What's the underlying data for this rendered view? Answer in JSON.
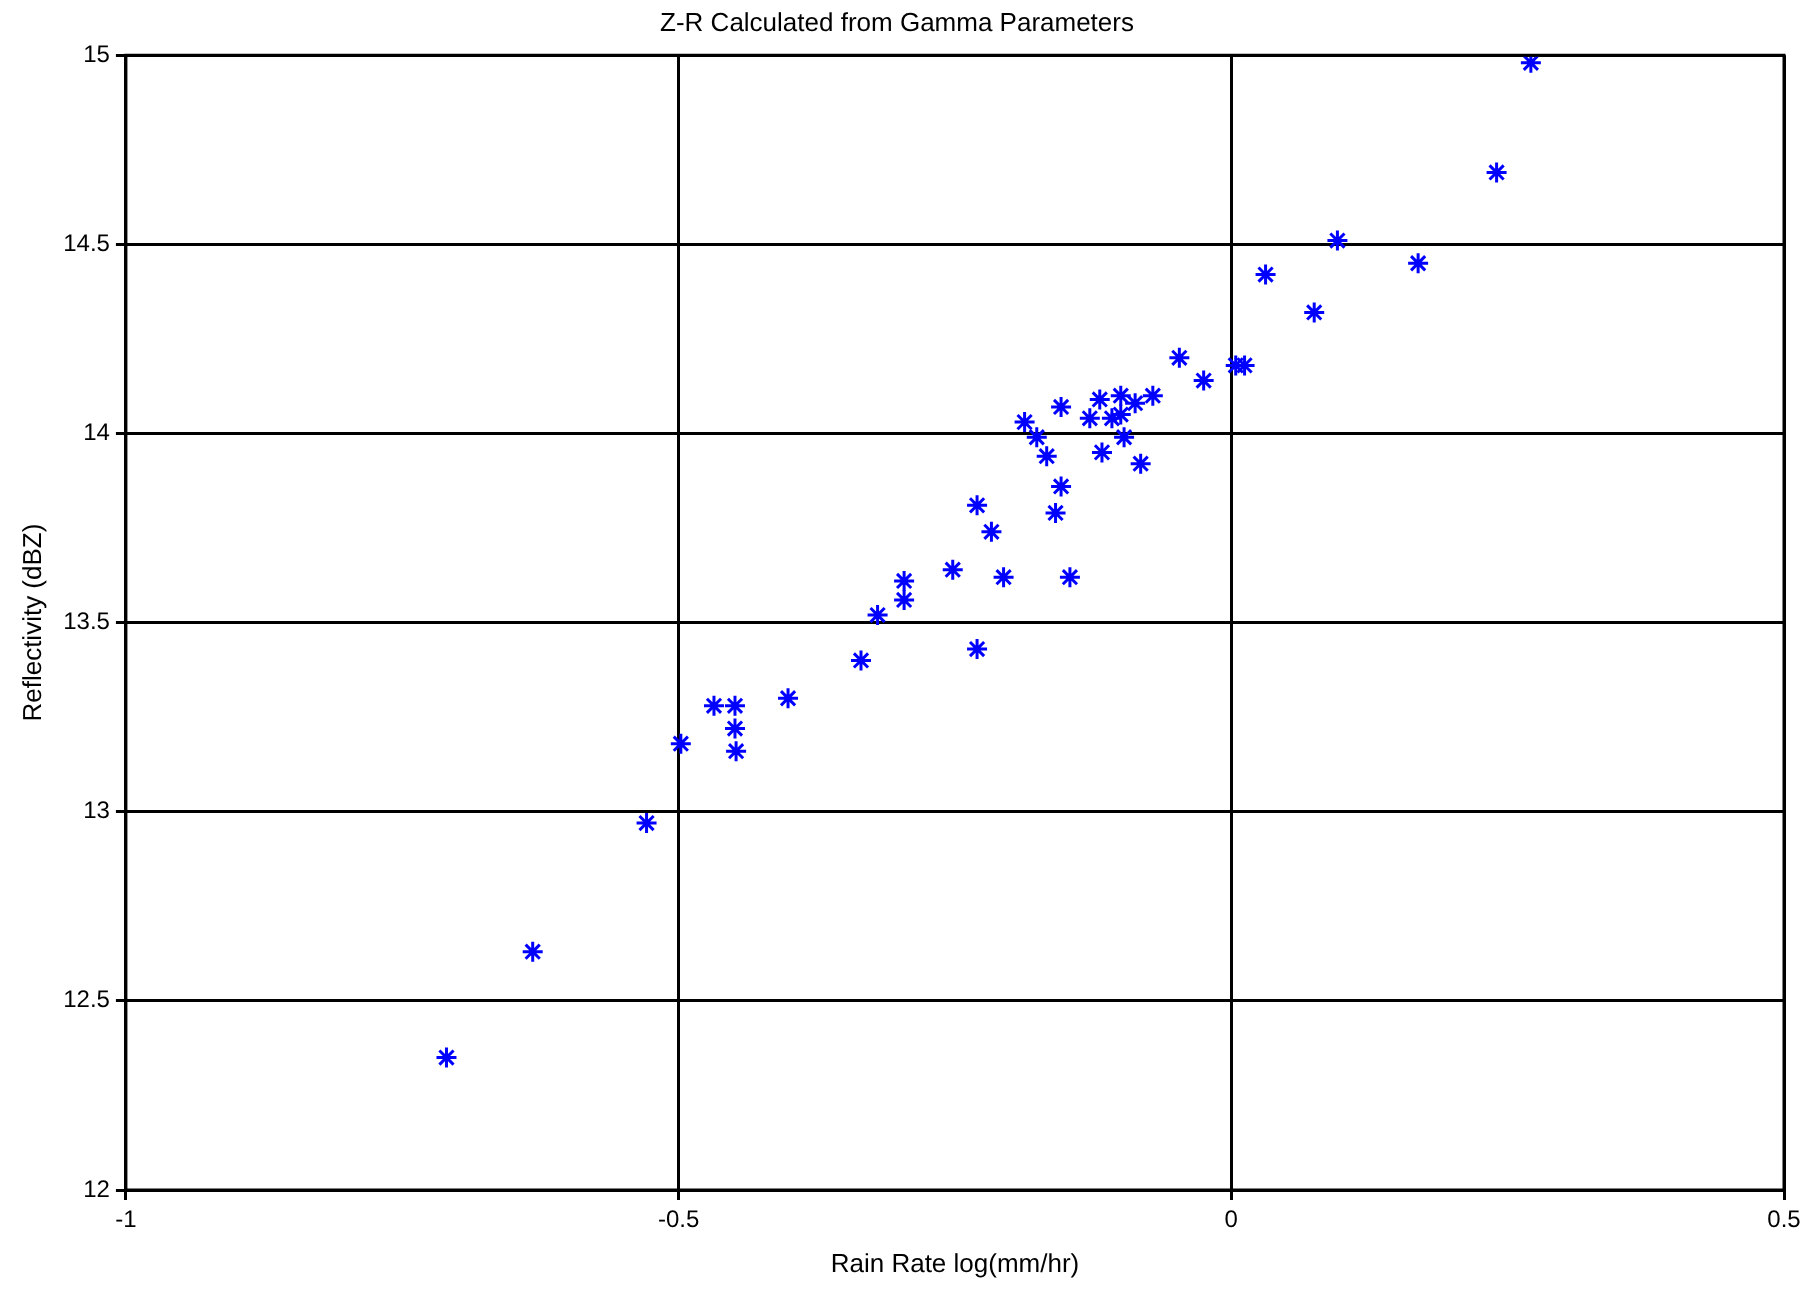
{
  "chart_data": {
    "type": "scatter",
    "title": "Z-R Calculated from Gamma Parameters",
    "xlabel": "Rain Rate log(mm/hr)",
    "ylabel": "Reflectivity (dBZ)",
    "x": [
      -0.71,
      -0.632,
      -0.529,
      -0.498,
      -0.468,
      -0.449,
      -0.449,
      -0.448,
      -0.401,
      -0.335,
      -0.32,
      -0.296,
      -0.296,
      -0.252,
      -0.23,
      -0.23,
      -0.217,
      -0.206,
      -0.187,
      -0.176,
      -0.167,
      -0.159,
      -0.154,
      -0.154,
      -0.146,
      -0.128,
      -0.119,
      -0.117,
      -0.108,
      -0.1,
      -0.097,
      -0.1,
      -0.087,
      -0.082,
      -0.071,
      -0.047,
      -0.025,
      0.004,
      0.012,
      0.031,
      0.075,
      0.096,
      0.169,
      0.24,
      0.271
    ],
    "series": [
      {
        "color": "#0000ff",
        "values": [
          12.35,
          12.63,
          12.97,
          13.18,
          13.28,
          13.28,
          13.22,
          13.16,
          13.3,
          13.4,
          13.52,
          13.56,
          13.61,
          13.64,
          13.43,
          13.81,
          13.74,
          13.62,
          14.03,
          13.99,
          13.94,
          13.79,
          13.86,
          14.07,
          13.62,
          14.04,
          14.09,
          13.95,
          14.04,
          14.1,
          13.99,
          14.05,
          14.08,
          13.92,
          14.1,
          14.2,
          14.14,
          14.18,
          14.18,
          14.42,
          14.32,
          14.51,
          14.45,
          14.69,
          14.98
        ]
      }
    ],
    "xlim": [
      -1,
      0.5
    ],
    "xticks": [
      -1,
      -0.5,
      0,
      0.5
    ],
    "ylim": [
      12,
      15
    ],
    "yticks": [
      12,
      12.5,
      13,
      13.5,
      14,
      14.5,
      15
    ],
    "grid": true,
    "marker": "cross",
    "legend": false
  }
}
